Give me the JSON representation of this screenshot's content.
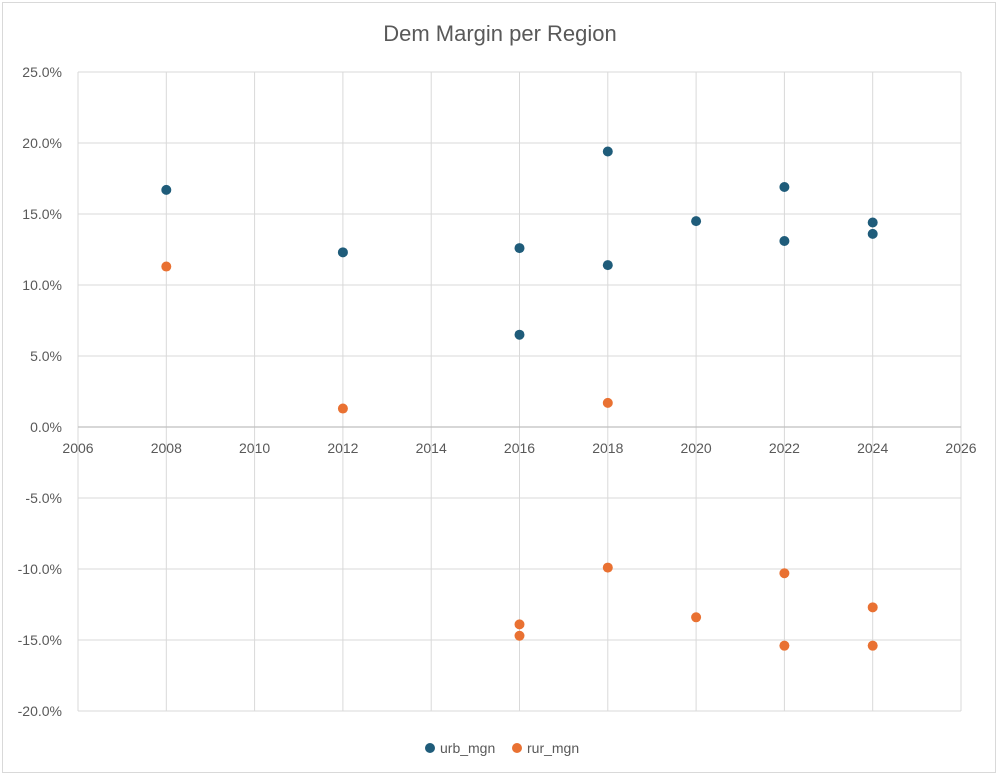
{
  "chart_data": {
    "type": "scatter",
    "title": "Dem Margin per Region",
    "xlabel": "",
    "ylabel": "",
    "xlim": [
      2006,
      2026
    ],
    "ylim": [
      -0.2,
      0.25
    ],
    "x_ticks": [
      "2006",
      "2008",
      "2010",
      "2012",
      "2014",
      "2016",
      "2018",
      "2020",
      "2022",
      "2024",
      "2026"
    ],
    "y_ticks": [
      "25.0%",
      "20.0%",
      "15.0%",
      "10.0%",
      "5.0%",
      "0.0%",
      "-5.0%",
      "-10.0%",
      "-15.0%",
      "-20.0%"
    ],
    "grid": true,
    "legend_position": "bottom",
    "series": [
      {
        "name": "urb_mgn",
        "color": "#1f5c7a",
        "points": [
          {
            "x": 2008,
            "y": 0.167
          },
          {
            "x": 2012,
            "y": 0.123
          },
          {
            "x": 2016,
            "y": 0.126
          },
          {
            "x": 2016,
            "y": 0.065
          },
          {
            "x": 2018,
            "y": 0.194
          },
          {
            "x": 2018,
            "y": 0.114
          },
          {
            "x": 2020,
            "y": 0.145
          },
          {
            "x": 2022,
            "y": 0.169
          },
          {
            "x": 2022,
            "y": 0.131
          },
          {
            "x": 2024,
            "y": 0.144
          },
          {
            "x": 2024,
            "y": 0.136
          }
        ]
      },
      {
        "name": "rur_mgn",
        "color": "#e97132",
        "points": [
          {
            "x": 2008,
            "y": 0.113
          },
          {
            "x": 2012,
            "y": 0.013
          },
          {
            "x": 2016,
            "y": -0.139
          },
          {
            "x": 2016,
            "y": -0.147
          },
          {
            "x": 2018,
            "y": 0.017
          },
          {
            "x": 2018,
            "y": -0.099
          },
          {
            "x": 2020,
            "y": -0.134
          },
          {
            "x": 2022,
            "y": -0.103
          },
          {
            "x": 2022,
            "y": -0.154
          },
          {
            "x": 2024,
            "y": -0.127
          },
          {
            "x": 2024,
            "y": -0.154
          }
        ]
      }
    ]
  }
}
